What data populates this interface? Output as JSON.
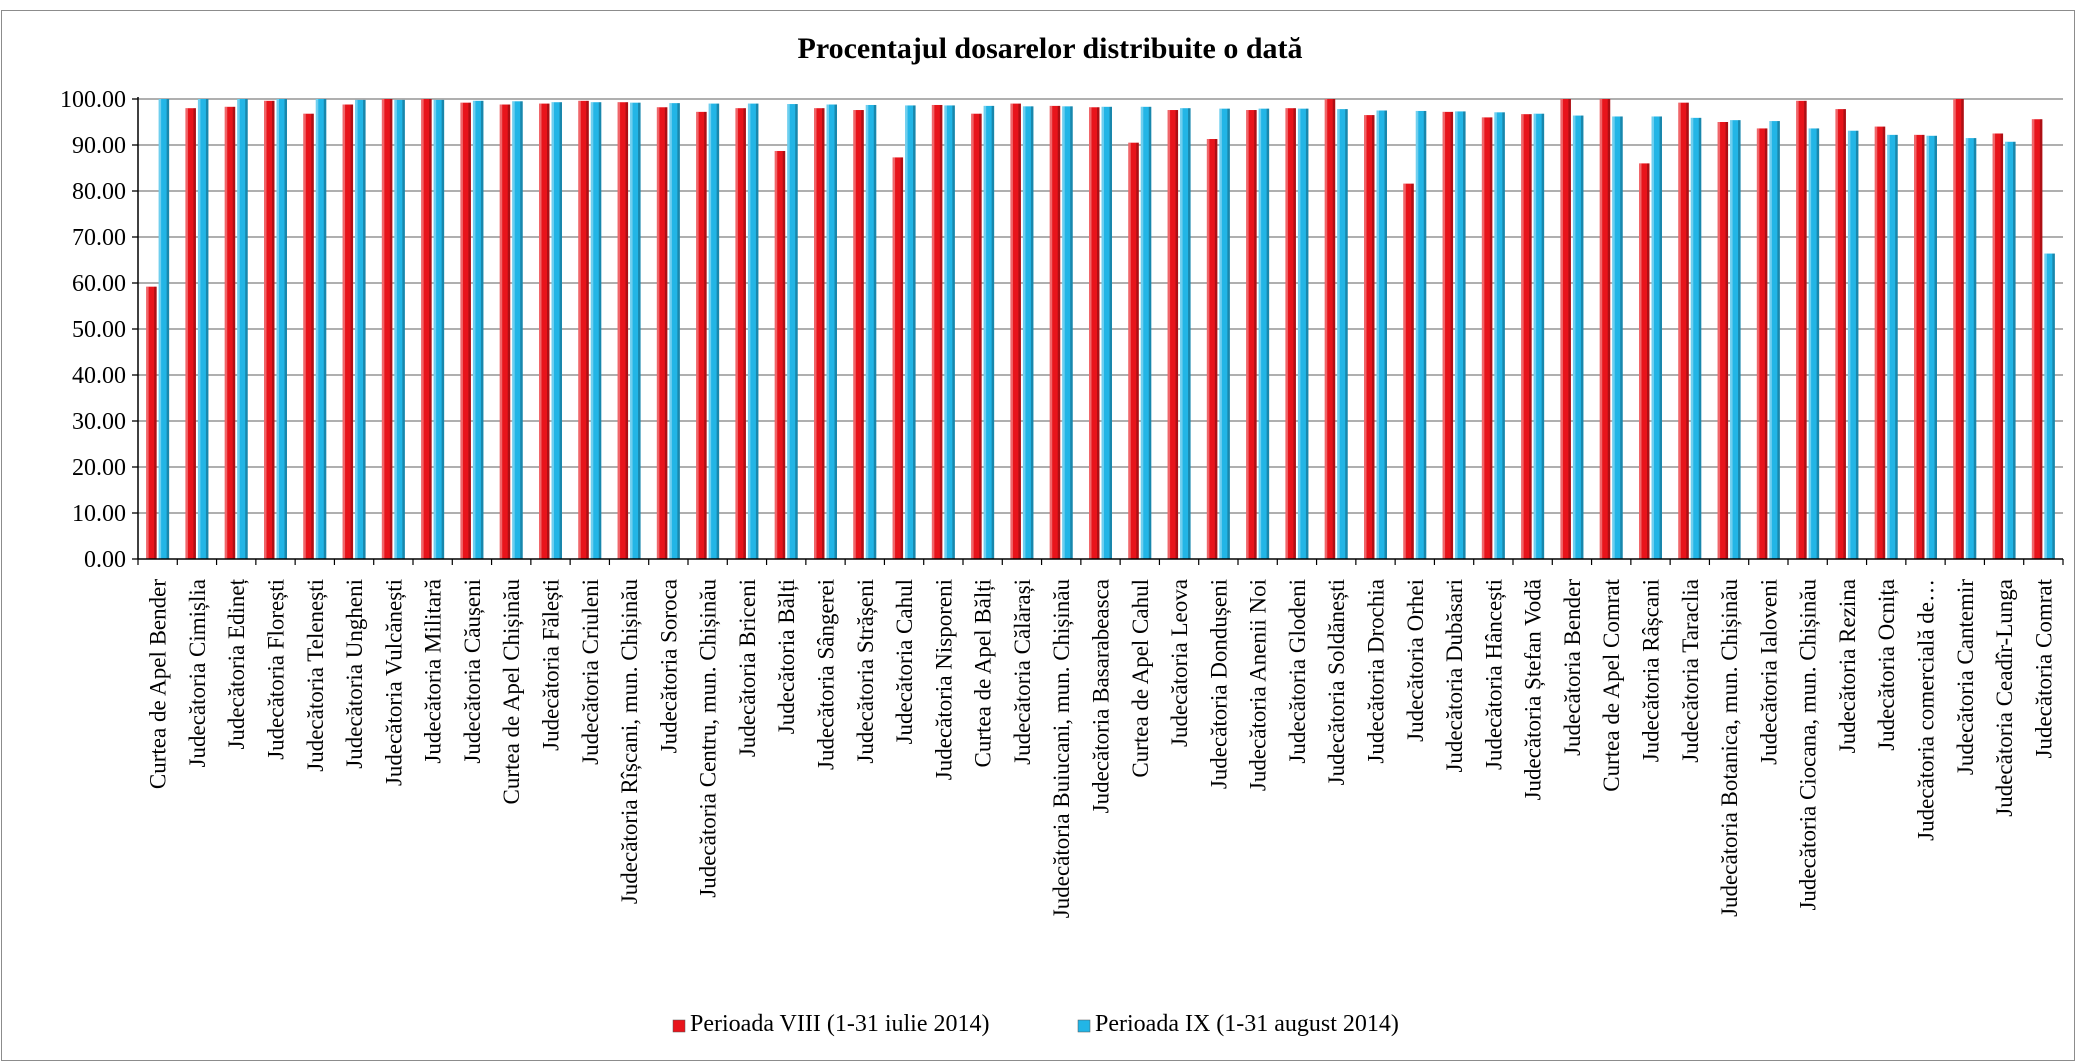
{
  "chart_data": {
    "type": "bar",
    "title": "Procentajul dosarelor distribuite o dată",
    "xlabel": "",
    "ylabel": "",
    "ylim": [
      0,
      100
    ],
    "ytick_step": 10,
    "ytick_labels": [
      "0.00",
      "10.00",
      "20.00",
      "30.00",
      "40.00",
      "50.00",
      "60.00",
      "70.00",
      "80.00",
      "90.00",
      "100.00"
    ],
    "grid": true,
    "legend_position": "bottom",
    "categories": [
      "Curtea de Apel Bender",
      "Judecătoria Cimișlia",
      "Judecătoria Edineț",
      "Judecătoria Florești",
      "Judecătoria Telenești",
      "Judecătoria Ungheni",
      "Judecătoria Vulcănești",
      "Judecătoria Militară",
      "Judecătoria Căușeni",
      "Curtea de Apel Chișinău",
      "Judecătoria Fălești",
      "Judecătoria Criuleni",
      "Judecătoria Rîșcani, mun. Chișinău",
      "Judecătoria Soroca",
      "Judecătoria Centru, mun. Chișinău",
      "Judecătoria Briceni",
      "Judecătoria Bălți",
      "Judecătoria Sângerei",
      "Judecătoria Strășeni",
      "Judecătoria Cahul",
      "Judecătoria Nisporeni",
      "Curtea de Apel Bălți",
      "Judecătoria Călărași",
      "Judecătoria Buiucani, mun. Chișinău",
      "Judecătoria Basarabeasca",
      "Curtea de Apel Cahul",
      "Judecătoria Leova",
      "Judecătoria Dondușeni",
      "Judecătoria Anenii Noi",
      "Judecătoria Glodeni",
      "Judecătoria Soldănești",
      "Judecătoria Drochia",
      "Judecătoria Orhei",
      "Judecătoria Dubăsari",
      "Judecătoria Hâncești",
      "Judecătoria Ștefan Vodă",
      "Judecătoria Bender",
      "Curtea de Apel Comrat",
      "Judecătoria Râșcani",
      "Judecătoria Taraclia",
      "Judecătoria Botanica, mun. Chișinău",
      "Judecătoria Ialoveni",
      "Judecătoria Ciocana, mun. Chișinău",
      "Judecătoria Rezina",
      "Judecătoria Ocnița",
      "Judecătoria comercială de…",
      "Judecătoria Cantemir",
      "Judecătoria Ceadîr-Lunga",
      "Judecătoria Comrat"
    ],
    "series": [
      {
        "name": "Perioada VIII (1-31 iulie 2014)",
        "color": "#e8141b",
        "values": [
          59.2,
          98.0,
          98.3,
          99.6,
          96.8,
          98.8,
          100,
          100,
          99.2,
          98.8,
          99.0,
          99.6,
          99.3,
          98.2,
          97.2,
          98.0,
          88.7,
          98.0,
          97.6,
          87.3,
          98.7,
          96.8,
          99.0,
          98.5,
          98.2,
          90.5,
          97.6,
          91.3,
          97.6,
          98.0,
          100,
          96.5,
          81.6,
          97.2,
          96.0,
          96.7,
          100,
          100,
          86.0,
          99.2,
          95.0,
          93.6,
          99.6,
          97.8,
          94.0,
          92.2,
          100,
          92.5,
          95.6
        ]
      },
      {
        "name": "Perioada IX (1-31 august 2014)",
        "color": "#22b5e6",
        "values": [
          100,
          100,
          100,
          100,
          100,
          99.8,
          99.8,
          99.8,
          99.6,
          99.5,
          99.3,
          99.3,
          99.2,
          99.1,
          99.0,
          99.0,
          98.9,
          98.8,
          98.7,
          98.6,
          98.6,
          98.5,
          98.4,
          98.4,
          98.3,
          98.3,
          98.0,
          97.9,
          97.9,
          97.9,
          97.8,
          97.5,
          97.4,
          97.3,
          97.1,
          96.8,
          96.4,
          96.2,
          96.2,
          95.9,
          95.4,
          95.2,
          93.6,
          93.1,
          92.2,
          92.0,
          91.5,
          90.7,
          66.4
        ]
      }
    ]
  }
}
